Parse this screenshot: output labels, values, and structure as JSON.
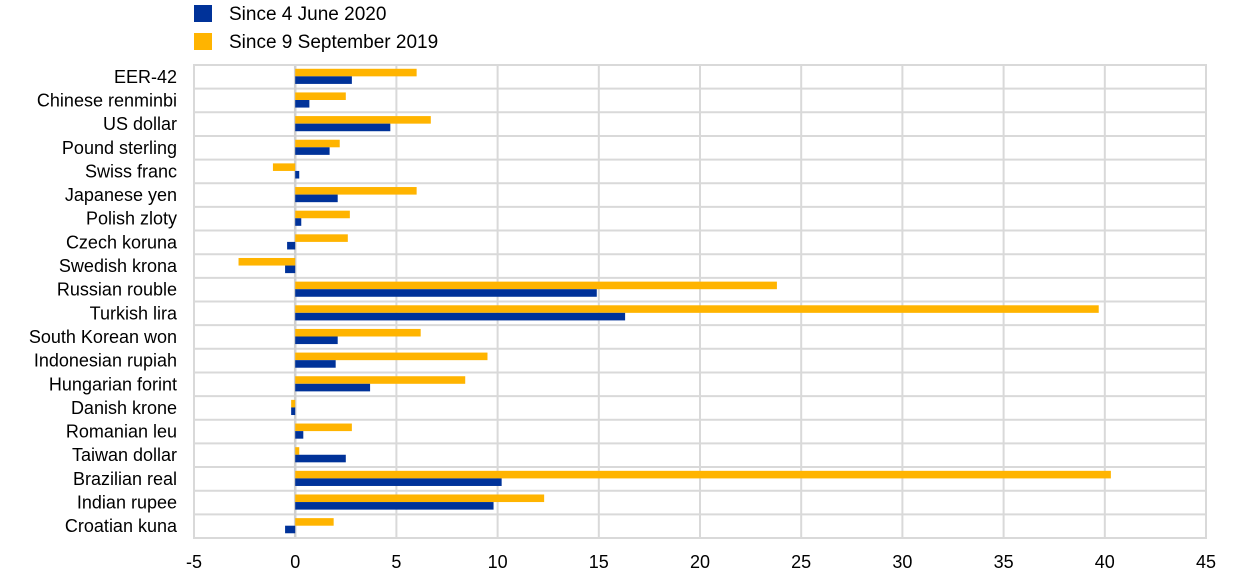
{
  "chart_data": {
    "type": "bar",
    "orientation": "horizontal",
    "title": "",
    "xlabel": "",
    "ylabel": "",
    "xlim": [
      -5,
      45
    ],
    "x_ticks": [
      -5,
      0,
      5,
      10,
      15,
      20,
      25,
      30,
      35,
      40,
      45
    ],
    "grid": true,
    "legend_position": "top-left",
    "categories": [
      "EER-42",
      "Chinese renminbi",
      "US dollar",
      "Pound sterling",
      "Swiss franc",
      "Japanese yen",
      "Polish zloty",
      "Czech koruna",
      "Swedish krona",
      "Russian rouble",
      "Turkish lira",
      "South Korean won",
      "Indonesian rupiah",
      "Hungarian forint",
      "Danish krone",
      "Romanian leu",
      "Taiwan dollar",
      "Brazilian real",
      "Indian rupee",
      "Croatian kuna"
    ],
    "series": [
      {
        "name": "Since 4 June 2020",
        "color": "#003299",
        "values": [
          2.8,
          0.7,
          4.7,
          1.7,
          0.2,
          2.1,
          0.3,
          -0.4,
          -0.5,
          14.9,
          16.3,
          2.1,
          2.0,
          3.7,
          -0.2,
          0.4,
          2.5,
          10.2,
          9.8,
          -0.5
        ]
      },
      {
        "name": "Since 9 September 2019",
        "color": "#FFB400",
        "values": [
          6.0,
          2.5,
          6.7,
          2.2,
          -1.1,
          6.0,
          2.7,
          2.6,
          -2.8,
          23.8,
          39.7,
          6.2,
          9.5,
          8.4,
          -0.2,
          2.8,
          0.2,
          40.3,
          12.3,
          1.9
        ]
      }
    ]
  }
}
